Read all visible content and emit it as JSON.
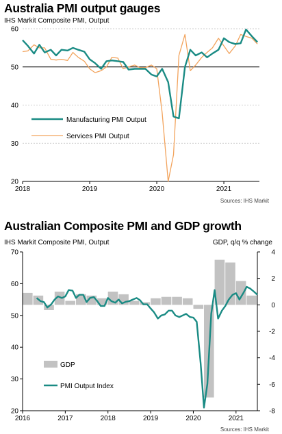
{
  "chart_data": [
    {
      "type": "line",
      "title": "Australia PMI output gauges",
      "subtitle": "IHS Markit  Composite PMI, Output",
      "source": "Sources: IHS Markit",
      "ylim": [
        20,
        60
      ],
      "yticks": [
        "20",
        "30",
        "40",
        "50",
        "60"
      ],
      "xlim": [
        2018.0,
        2021.53
      ],
      "xticks": [
        {
          "label": "2018",
          "x": 2018.0
        },
        {
          "label": "2019",
          "x": 2019.0
        },
        {
          "label": "2020",
          "x": 2020.0
        },
        {
          "label": "2021",
          "x": 2021.0
        }
      ],
      "grid": true,
      "legend": "bottom-left",
      "series": [
        {
          "name": "Manufacturing PMI Output",
          "color": "#1a8b84",
          "x": [
            2018.0,
            2018.08,
            2018.17,
            2018.25,
            2018.33,
            2018.42,
            2018.5,
            2018.58,
            2018.67,
            2018.75,
            2018.83,
            2018.92,
            2019.0,
            2019.08,
            2019.17,
            2019.25,
            2019.33,
            2019.42,
            2019.5,
            2019.58,
            2019.67,
            2019.75,
            2019.83,
            2019.92,
            2020.0,
            2020.08,
            2020.17,
            2020.25,
            2020.33,
            2020.42,
            2020.5,
            2020.58,
            2020.67,
            2020.75,
            2020.83,
            2020.92,
            2021.0,
            2021.08,
            2021.17,
            2021.25,
            2021.33,
            2021.42,
            2021.5
          ],
          "values": [
            57,
            55.5,
            53.5,
            55.8,
            53.8,
            54.5,
            53,
            54.5,
            54.3,
            55,
            54.5,
            54,
            52,
            51,
            49.5,
            51.5,
            51.7,
            51.5,
            51.3,
            49.3,
            49.5,
            49.5,
            49.5,
            48,
            47.5,
            49.5,
            46,
            37,
            36.5,
            50,
            54.5,
            53,
            53.8,
            52.5,
            53.5,
            54.5,
            57.5,
            56.5,
            56,
            56.2,
            59.8,
            58,
            56.5
          ]
        },
        {
          "name": "Services PMI Output",
          "color": "#f2a35c",
          "x": [
            2018.0,
            2018.08,
            2018.17,
            2018.25,
            2018.33,
            2018.42,
            2018.5,
            2018.58,
            2018.67,
            2018.75,
            2018.83,
            2018.92,
            2019.0,
            2019.08,
            2019.17,
            2019.25,
            2019.33,
            2019.42,
            2019.5,
            2019.58,
            2019.67,
            2019.75,
            2019.83,
            2019.92,
            2020.0,
            2020.08,
            2020.17,
            2020.25,
            2020.33,
            2020.42,
            2020.5,
            2020.58,
            2020.67,
            2020.75,
            2020.83,
            2020.92,
            2021.0,
            2021.08,
            2021.17,
            2021.25,
            2021.33,
            2021.42,
            2021.5
          ],
          "values": [
            54,
            54.2,
            55.8,
            55,
            55,
            52,
            51.8,
            52,
            51.7,
            53.8,
            52.5,
            51.5,
            49.5,
            48.5,
            49,
            50,
            52.5,
            52.3,
            49.5,
            50,
            50.5,
            49.8,
            49.8,
            50.5,
            49.5,
            38,
            20,
            27,
            53,
            58.5,
            49,
            50.5,
            52.5,
            53.8,
            55,
            57.5,
            55.5,
            53.5,
            55.5,
            58.5,
            58,
            57.5,
            56
          ]
        }
      ]
    },
    {
      "type": "bar",
      "title": "Australian Composite PMI and GDP growth",
      "subtitle_left": "IHS Markit  Composite PMI, Output",
      "subtitle_right": "GDP, q/q % change",
      "source": "Sources: IHS Markit",
      "ylim": [
        20,
        70
      ],
      "yticks": [
        "20",
        "30",
        "40",
        "50",
        "60",
        "70"
      ],
      "y2lim": [
        -8,
        4
      ],
      "y2ticks": [
        "-8",
        "-6",
        "-4",
        "-2",
        "0",
        "2",
        "4"
      ],
      "xlim": [
        2016.0,
        2021.5
      ],
      "xticks": [
        {
          "label": "2016",
          "x": 2016.0
        },
        {
          "label": "2017",
          "x": 2017.0
        },
        {
          "label": "2018",
          "x": 2018.0
        },
        {
          "label": "2019",
          "x": 2019.0
        },
        {
          "label": "2020",
          "x": 2020.0
        },
        {
          "label": "2021",
          "x": 2021.0
        }
      ],
      "legend": "bottom-left",
      "series": [
        {
          "name": "GDP",
          "color": "#c2c2c2",
          "axis": "right",
          "x": [
            2016.0,
            2016.25,
            2016.5,
            2016.75,
            2017.0,
            2017.25,
            2017.5,
            2017.75,
            2018.0,
            2018.25,
            2018.5,
            2018.75,
            2019.0,
            2019.25,
            2019.5,
            2019.75,
            2020.0,
            2020.25,
            2020.5,
            2020.75,
            2021.0,
            2021.25
          ],
          "values": [
            0.9,
            0.7,
            -0.4,
            1.0,
            0.3,
            0.8,
            0.7,
            0.5,
            1.0,
            0.8,
            0.3,
            0.2,
            0.5,
            0.6,
            0.6,
            0.5,
            -0.3,
            -7.0,
            3.4,
            3.2,
            1.8,
            0.7
          ]
        },
        {
          "name": "PMI Output Index",
          "color": "#1a8b84",
          "axis": "left",
          "x": [
            2016.33,
            2016.42,
            2016.5,
            2016.58,
            2016.67,
            2016.75,
            2016.83,
            2016.92,
            2017.0,
            2017.08,
            2017.17,
            2017.25,
            2017.33,
            2017.42,
            2017.5,
            2017.58,
            2017.67,
            2017.75,
            2017.83,
            2017.92,
            2018.0,
            2018.08,
            2018.17,
            2018.25,
            2018.33,
            2018.42,
            2018.5,
            2018.58,
            2018.67,
            2018.75,
            2018.83,
            2018.92,
            2019.0,
            2019.08,
            2019.17,
            2019.25,
            2019.33,
            2019.42,
            2019.5,
            2019.58,
            2019.67,
            2019.75,
            2019.83,
            2019.92,
            2020.0,
            2020.08,
            2020.17,
            2020.25,
            2020.33,
            2020.42,
            2020.5,
            2020.58,
            2020.67,
            2020.75,
            2020.83,
            2020.92,
            2021.0,
            2021.08,
            2021.17,
            2021.25,
            2021.33,
            2021.42,
            2021.5
          ],
          "values": [
            55.5,
            54.5,
            54.2,
            52.5,
            53.5,
            55,
            56,
            55.5,
            56,
            58,
            57.8,
            55.5,
            56.5,
            56.5,
            54.2,
            55.5,
            55.8,
            54.5,
            53,
            53,
            55.5,
            54.5,
            54,
            55,
            53.8,
            54.3,
            54.5,
            55,
            55.5,
            54.8,
            53.5,
            53.5,
            52.2,
            51,
            49,
            50,
            50.3,
            51.5,
            51.5,
            50,
            49.5,
            50,
            50.5,
            49.5,
            49.3,
            48,
            35,
            21,
            28.5,
            50.5,
            58,
            49,
            51.5,
            53,
            55,
            56.5,
            57,
            55,
            57,
            59,
            58.5,
            57.5,
            56.5
          ]
        }
      ]
    }
  ]
}
